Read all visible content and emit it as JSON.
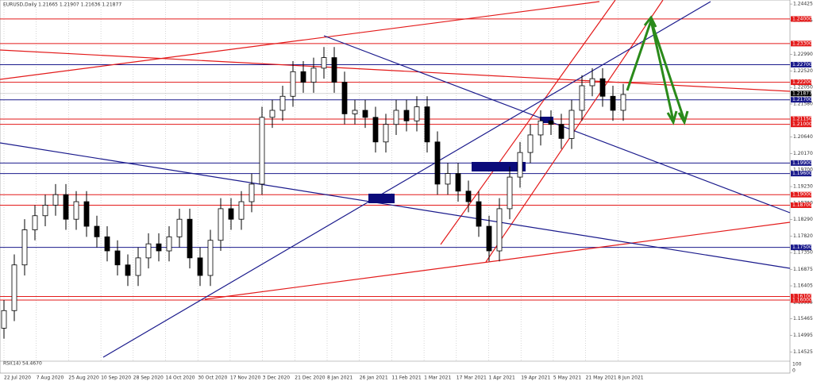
{
  "chart_data": {
    "type": "candlestick",
    "title": "EURUSD,Daily  1.21665 1.21907 1.21636 1.21877",
    "indicator_label": "RSI(14) 54.4670",
    "indicator_ticks": [
      "100",
      "0"
    ],
    "ylim": [
      1.1426,
      1.2454
    ],
    "yticks": [
      {
        "value": 1.24425,
        "label": "1.24425"
      },
      {
        "value": 1.23955,
        "label": "1.23955"
      },
      {
        "value": 1.2299,
        "label": "1.22990"
      },
      {
        "value": 1.2252,
        "label": "1.22520"
      },
      {
        "value": 1.2205,
        "label": "1.22050"
      },
      {
        "value": 1.2158,
        "label": "1.21580"
      },
      {
        "value": 1.2064,
        "label": "1.20640"
      },
      {
        "value": 1.2017,
        "label": "1.20170"
      },
      {
        "value": 1.197,
        "label": "1.19700"
      },
      {
        "value": 1.1923,
        "label": "1.19230"
      },
      {
        "value": 1.1876,
        "label": "1.18760"
      },
      {
        "value": 1.1829,
        "label": "1.18290"
      },
      {
        "value": 1.1782,
        "label": "1.17820"
      },
      {
        "value": 1.1735,
        "label": "1.17350"
      },
      {
        "value": 1.16875,
        "label": "1.16875"
      },
      {
        "value": 1.16405,
        "label": "1.16405"
      },
      {
        "value": 1.15935,
        "label": "1.15935"
      },
      {
        "value": 1.15465,
        "label": "1.15465"
      },
      {
        "value": 1.14995,
        "label": "1.14995"
      },
      {
        "value": 1.14525,
        "label": "1.14525"
      }
    ],
    "levels": [
      {
        "value": 1.24,
        "label": "1.24000",
        "color": "#e31a1a"
      },
      {
        "value": 1.233,
        "label": "1.23300",
        "color": "#e31a1a"
      },
      {
        "value": 1.227,
        "label": "1.22700",
        "color": "#1a1a8c"
      },
      {
        "value": 1.222,
        "label": "1.22200",
        "color": "#e31a1a"
      },
      {
        "value": 1.21877,
        "label": "1.21877",
        "color": "#000000"
      },
      {
        "value": 1.217,
        "label": "1.21700",
        "color": "#1a1a8c"
      },
      {
        "value": 1.2115,
        "label": "1.21150",
        "color": "#e31a1a"
      },
      {
        "value": 1.21,
        "label": "1.21000",
        "color": "#e31a1a"
      },
      {
        "value": 1.199,
        "label": "1.19900",
        "color": "#1a1a8c"
      },
      {
        "value": 1.196,
        "label": "1.19600",
        "color": "#1a1a8c"
      },
      {
        "value": 1.19,
        "label": "1.19000",
        "color": "#e31a1a"
      },
      {
        "value": 1.187,
        "label": "1.18700",
        "color": "#e31a1a"
      },
      {
        "value": 1.175,
        "label": "1.17500",
        "color": "#1a1a8c"
      },
      {
        "value": 1.161,
        "label": "1.16100",
        "color": "#e31a1a"
      },
      {
        "value": 1.16,
        "label": "1.16000",
        "color": "#e31a1a"
      }
    ],
    "x_labels": [
      "22 Jul 2020",
      "7 Aug 2020",
      "25 Aug 2020",
      "10 Sep 2020",
      "28 Sep 2020",
      "14 Oct 2020",
      "30 Oct 2020",
      "17 Nov 2020",
      "3 Dec 2020",
      "21 Dec 2020",
      "8 Jan 2021",
      "26 Jan 2021",
      "11 Feb 2021",
      "1 Mar 2021",
      "17 Mar 2021",
      "1 Apr 2021",
      "19 Apr 2021",
      "5 May 2021",
      "21 May 2021",
      "8 Jun 2021"
    ],
    "grid": true,
    "color": "#000000",
    "open": [
      1.152,
      1.157,
      1.17,
      1.18,
      1.184,
      1.187,
      1.19,
      1.183,
      1.188,
      1.181,
      1.178,
      1.174,
      1.17,
      1.167,
      1.172,
      1.176,
      1.174,
      1.178,
      1.183,
      1.172,
      1.167,
      1.177,
      1.186,
      1.183,
      1.188,
      1.193,
      1.212,
      1.214,
      1.218,
      1.225,
      1.222,
      1.226,
      1.229,
      1.222,
      1.213,
      1.214,
      1.212,
      1.205,
      1.21,
      1.214,
      1.211,
      1.215,
      1.205,
      1.193,
      1.196,
      1.191,
      1.188,
      1.181,
      1.174,
      1.186,
      1.195,
      1.202,
      1.207,
      1.211,
      1.21,
      1.206,
      1.214,
      1.221,
      1.223,
      1.218,
      1.214
    ],
    "high": [
      1.16,
      1.173,
      1.183,
      1.187,
      1.19,
      1.193,
      1.193,
      1.191,
      1.191,
      1.184,
      1.181,
      1.177,
      1.173,
      1.175,
      1.179,
      1.179,
      1.181,
      1.186,
      1.186,
      1.175,
      1.18,
      1.189,
      1.189,
      1.191,
      1.196,
      1.215,
      1.217,
      1.221,
      1.228,
      1.228,
      1.229,
      1.232,
      1.232,
      1.225,
      1.217,
      1.217,
      1.215,
      1.213,
      1.217,
      1.217,
      1.218,
      1.218,
      1.208,
      1.199,
      1.199,
      1.194,
      1.191,
      1.184,
      1.189,
      1.198,
      1.205,
      1.21,
      1.214,
      1.214,
      1.213,
      1.217,
      1.224,
      1.226,
      1.226,
      1.221,
      1.2215
    ],
    "low": [
      1.149,
      1.154,
      1.167,
      1.177,
      1.181,
      1.184,
      1.18,
      1.18,
      1.178,
      1.175,
      1.171,
      1.167,
      1.164,
      1.164,
      1.169,
      1.171,
      1.171,
      1.175,
      1.169,
      1.164,
      1.164,
      1.174,
      1.18,
      1.18,
      1.185,
      1.19,
      1.209,
      1.211,
      1.215,
      1.219,
      1.219,
      1.223,
      1.219,
      1.21,
      1.21,
      1.209,
      1.202,
      1.202,
      1.207,
      1.208,
      1.208,
      1.202,
      1.19,
      1.19,
      1.188,
      1.185,
      1.178,
      1.171,
      1.171,
      1.183,
      1.192,
      1.199,
      1.204,
      1.207,
      1.203,
      1.203,
      1.211,
      1.218,
      1.215,
      1.211,
      1.211
    ],
    "close": [
      1.157,
      1.17,
      1.18,
      1.184,
      1.187,
      1.19,
      1.183,
      1.188,
      1.181,
      1.178,
      1.174,
      1.17,
      1.167,
      1.172,
      1.176,
      1.174,
      1.178,
      1.183,
      1.172,
      1.167,
      1.177,
      1.186,
      1.183,
      1.188,
      1.193,
      1.212,
      1.214,
      1.218,
      1.225,
      1.222,
      1.226,
      1.229,
      1.222,
      1.213,
      1.214,
      1.212,
      1.205,
      1.21,
      1.214,
      1.211,
      1.215,
      1.205,
      1.193,
      1.196,
      1.191,
      1.188,
      1.181,
      1.174,
      1.186,
      1.195,
      1.202,
      1.207,
      1.211,
      1.21,
      1.206,
      1.214,
      1.221,
      1.223,
      1.218,
      1.214,
      1.2185
    ]
  }
}
